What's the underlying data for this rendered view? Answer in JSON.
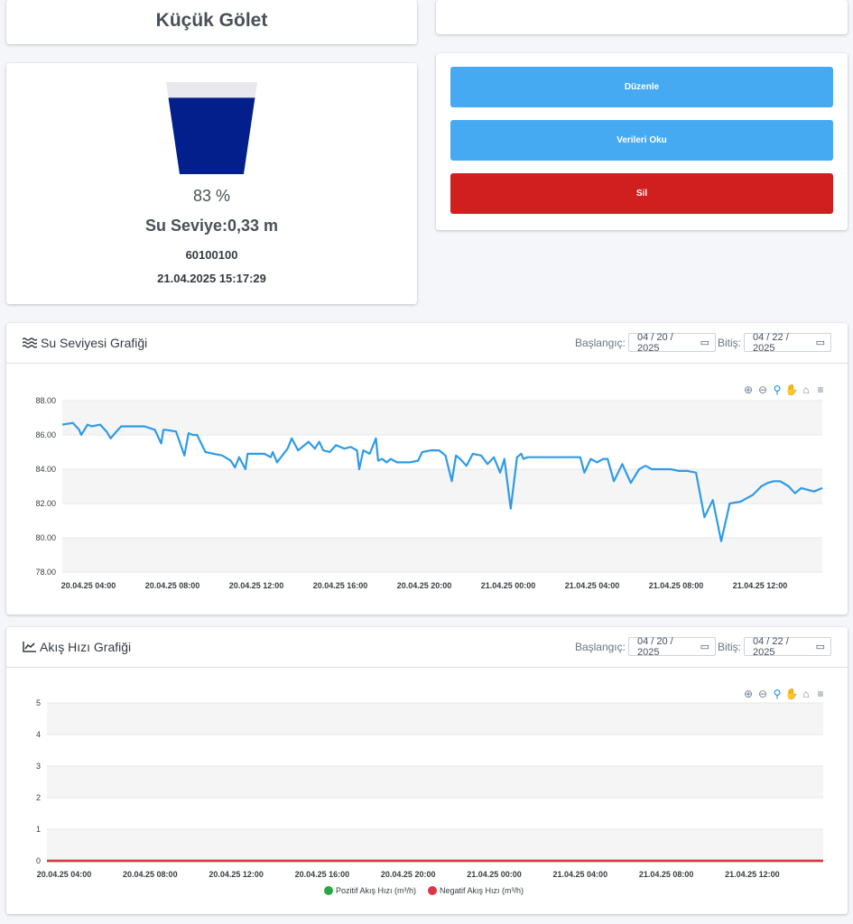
{
  "header": {
    "title": "Küçük Gölet"
  },
  "tank": {
    "fill_fraction": 0.83,
    "percent_label": "83 %",
    "level_label": "Su Seviye:0,33 m",
    "device_id": "60100100",
    "timestamp": "21.04.2025 15:17:29",
    "fill_color": "#021f8c"
  },
  "actions": {
    "edit_label": "Düzenle",
    "read_label": "Verileri Oku",
    "delete_label": "Sil"
  },
  "level_chart": {
    "title": "Su Seviyesi Grafiği",
    "start_label": "Başlangıç:",
    "start_date": "04 / 20 / 2025",
    "end_label": "Bitiş:",
    "end_date": "04 / 22 / 2025"
  },
  "flow_chart": {
    "title": "Akış Hızı Grafiği",
    "start_label": "Başlangıç:",
    "start_date": "04 / 20 / 2025",
    "end_label": "Bitiş:",
    "end_date": "04 / 22 / 2025"
  },
  "chart_data": [
    {
      "type": "line",
      "title": "",
      "ylim": [
        78,
        88
      ],
      "yticks": [
        "78.00",
        "80.00",
        "82.00",
        "84.00",
        "86.00",
        "88.00"
      ],
      "x_tick_labels": [
        "20.04.25 04:00",
        "20.04.25 08:00",
        "20.04.25 12:00",
        "20.04.25 16:00",
        "20.04.25 20:00",
        "21.04.25 00:00",
        "21.04.25 04:00",
        "21.04.25 08:00",
        "21.04.25 12:00"
      ],
      "x_range_hours": [
        3.1,
        39.2
      ],
      "series": [
        {
          "color": "#2e9be8",
          "x": [
            3.1,
            3.6,
            3.9,
            4.0,
            4.3,
            4.5,
            4.9,
            5.2,
            5.4,
            5.6,
            5.9,
            6.2,
            6.7,
            7.0,
            7.5,
            7.8,
            7.9,
            8.0,
            8.5,
            8.9,
            9.1,
            9.3,
            9.5,
            9.9,
            10.3,
            10.7,
            11.1,
            11.3,
            11.5,
            11.8,
            11.9,
            12.0,
            12.3,
            12.7,
            13.0,
            13.1,
            13.3,
            13.8,
            14.0,
            14.3,
            14.6,
            14.8,
            15.1,
            15.3,
            15.5,
            15.8,
            16.1,
            16.5,
            16.8,
            17.1,
            17.2,
            17.4,
            17.7,
            18.0,
            18.1,
            18.3,
            18.5,
            18.7,
            19.0,
            19.3,
            19.6,
            20.0,
            20.2,
            20.6,
            21.0,
            21.3,
            21.6,
            21.8,
            22.0,
            22.3,
            22.6,
            23.0,
            23.3,
            23.6,
            23.9,
            24.1,
            24.4,
            24.7,
            24.9,
            25.0,
            25.2,
            25.4,
            25.7,
            26.0,
            26.4,
            26.8,
            27.1,
            27.5,
            27.7,
            27.9,
            28.2,
            28.5,
            28.8,
            29.0,
            29.3,
            29.7,
            30.1,
            30.5,
            30.8,
            31.1,
            31.3,
            31.6,
            32.0,
            32.4,
            32.8,
            33.2,
            33.6,
            34.0,
            34.4,
            34.8,
            35.3,
            35.6,
            35.9,
            36.3,
            36.6,
            36.9,
            37.2,
            37.6,
            37.9,
            38.2,
            38.5,
            38.8,
            39.0,
            39.2
          ],
          "values": [
            86.6,
            86.7,
            86.3,
            86.0,
            86.6,
            86.5,
            86.6,
            86.2,
            85.8,
            86.1,
            86.5,
            86.5,
            86.5,
            86.5,
            86.3,
            85.5,
            86.3,
            86.3,
            86.2,
            84.8,
            86.1,
            86.0,
            86.0,
            85.0,
            84.9,
            84.8,
            84.5,
            84.1,
            84.7,
            84.0,
            84.9,
            84.9,
            84.9,
            84.9,
            84.7,
            85.0,
            84.4,
            85.2,
            85.8,
            85.1,
            85.4,
            85.6,
            85.2,
            85.6,
            85.1,
            85.0,
            85.4,
            85.2,
            85.3,
            85.1,
            84.0,
            85.1,
            84.9,
            85.8,
            84.5,
            84.6,
            84.4,
            84.6,
            84.4,
            84.4,
            84.4,
            84.5,
            85.0,
            85.1,
            85.1,
            84.8,
            83.3,
            84.8,
            84.6,
            84.2,
            84.9,
            84.8,
            84.3,
            84.7,
            83.8,
            84.6,
            81.7,
            84.7,
            84.9,
            84.6,
            84.7,
            84.7,
            84.7,
            84.7,
            84.7,
            84.7,
            84.7,
            84.7,
            84.7,
            83.8,
            84.6,
            84.4,
            84.6,
            84.6,
            83.3,
            84.3,
            83.2,
            84.0,
            84.2,
            84.0,
            84.0,
            84.0,
            84.0,
            83.9,
            83.9,
            83.8,
            81.2,
            82.2,
            79.8,
            82.0,
            82.1,
            82.3,
            82.5,
            83.0,
            83.2,
            83.3,
            83.3,
            83.0,
            82.6,
            82.9,
            82.8,
            82.7,
            82.8,
            82.9
          ]
        }
      ]
    },
    {
      "type": "line",
      "title": "",
      "ylim": [
        0,
        5
      ],
      "yticks": [
        "0",
        "1",
        "2",
        "3",
        "4",
        "5"
      ],
      "x_tick_labels": [
        "20.04.25 04:00",
        "20.04.25 08:00",
        "20.04.25 12:00",
        "20.04.25 16:00",
        "20.04.25 20:00",
        "21.04.25 00:00",
        "21.04.25 04:00",
        "21.04.25 08:00",
        "21.04.25 12:00"
      ],
      "legend": "bottom",
      "series": [
        {
          "name": "Pozitif Akış Hızı (m³/h)",
          "color": "#28a745",
          "values": [
            0,
            0
          ]
        },
        {
          "name": "Negatif Akış Hızı (m³/h)",
          "color": "#dc3545",
          "values": [
            0,
            0
          ]
        }
      ]
    }
  ]
}
